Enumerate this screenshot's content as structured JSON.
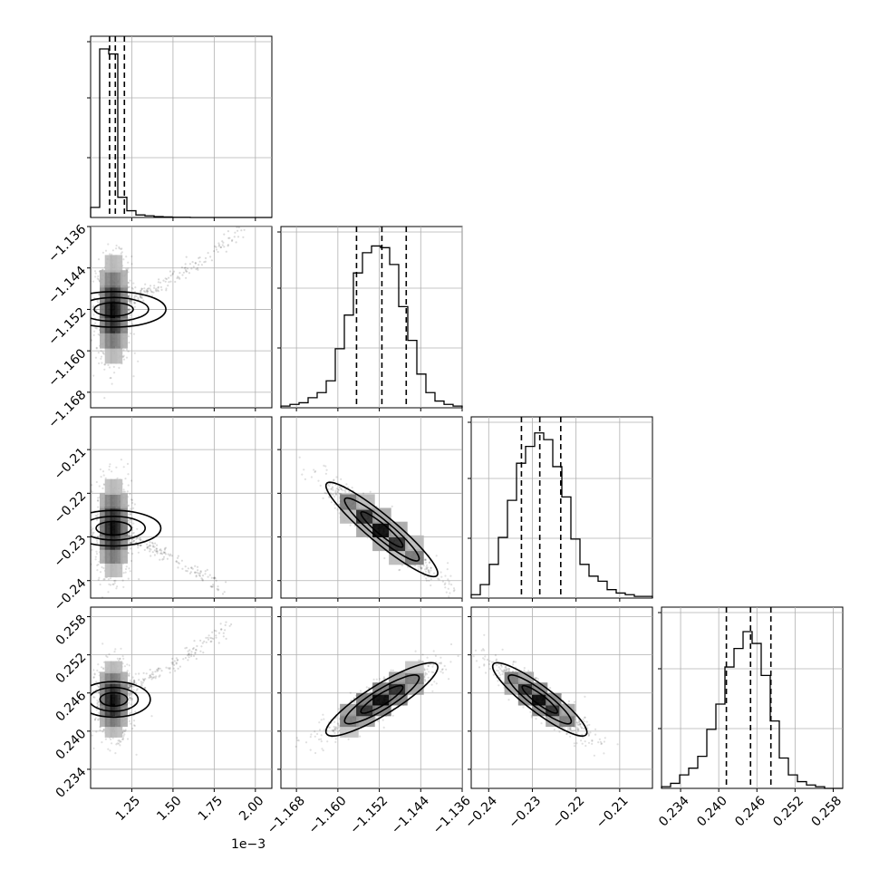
{
  "chart_data": {
    "type": "corner",
    "parameters": [
      {
        "range": [
          1.0,
          2.1
        ],
        "quantiles": [
          1.115,
          1.15,
          1.205
        ],
        "xticks": [
          "1.25",
          "1.50",
          "1.75",
          "2.00"
        ],
        "xtick_values": [
          1.25,
          1.5,
          1.75,
          2.0
        ],
        "offset_text": "1e−3",
        "hist_bins": [
          0.06,
          1.0,
          0.97,
          0.12,
          0.04,
          0.015,
          0.01,
          0.005,
          0.003,
          0.001,
          0.001,
          0.0,
          0.0,
          0.0,
          0.0,
          0.0,
          0.0,
          0.0,
          0.0,
          0.0
        ]
      },
      {
        "range": [
          -1.171,
          -1.136
        ],
        "quantiles": [
          -1.1564,
          -1.1515,
          -1.1468
        ],
        "ticks": [
          "−1.136",
          "−1.144",
          "−1.152",
          "−1.160",
          "−1.168"
        ],
        "tick_values": [
          -1.136,
          -1.144,
          -1.152,
          -1.16,
          -1.168
        ],
        "hist_bins": [
          0.01,
          0.02,
          0.03,
          0.06,
          0.09,
          0.16,
          0.35,
          0.55,
          0.8,
          0.92,
          0.96,
          0.95,
          0.85,
          0.6,
          0.4,
          0.2,
          0.09,
          0.04,
          0.02,
          0.01
        ]
      },
      {
        "range": [
          -0.244,
          -0.2025
        ],
        "quantiles": [
          -0.2325,
          -0.2283,
          -0.2235
        ],
        "xticks": [
          "−0.24",
          "−0.23",
          "−0.22",
          "−0.21"
        ],
        "xtick_values": [
          -0.24,
          -0.23,
          -0.22,
          -0.21
        ],
        "yticks": [
          "−0.21",
          "−0.22",
          "−0.23",
          "−0.24"
        ],
        "ytick_values": [
          -0.21,
          -0.22,
          -0.23,
          -0.24
        ],
        "hist_bins": [
          0.02,
          0.08,
          0.2,
          0.36,
          0.58,
          0.8,
          0.9,
          0.98,
          0.94,
          0.78,
          0.6,
          0.35,
          0.2,
          0.13,
          0.1,
          0.05,
          0.03,
          0.02,
          0.01,
          0.01
        ]
      },
      {
        "range": [
          0.231,
          0.2595
        ],
        "quantiles": [
          0.2412,
          0.245,
          0.2482
        ],
        "ticks": [
          "0.234",
          "0.240",
          "0.246",
          "0.252",
          "0.258"
        ],
        "tick_values": [
          0.234,
          0.24,
          0.246,
          0.252,
          0.258
        ],
        "hist_bins": [
          0.01,
          0.03,
          0.08,
          0.12,
          0.19,
          0.35,
          0.5,
          0.72,
          0.83,
          0.93,
          0.86,
          0.67,
          0.4,
          0.18,
          0.08,
          0.04,
          0.02,
          0.01,
          0.0,
          0.0
        ]
      }
    ],
    "pairs": [
      {
        "x": 0,
        "y": 1,
        "center": [
          1.14,
          -1.152
        ],
        "sd": [
          0.045,
          0.0042
        ],
        "rho": 0.0,
        "tail": {
          "dir": [
            0.6,
            1.0
          ],
          "len": [
            0.75,
            0.014
          ]
        }
      },
      {
        "x": 0,
        "y": 2,
        "center": [
          1.14,
          -0.228
        ],
        "sd": [
          0.045,
          0.0045
        ],
        "rho": 0.0,
        "tail": {
          "dir": [
            0.6,
            -1.0
          ],
          "len": [
            0.6,
            0.012
          ]
        }
      },
      {
        "x": 1,
        "y": 2,
        "center": [
          -1.1515,
          -0.2283
        ],
        "sd": [
          0.0045,
          0.0045
        ],
        "rho": -0.93,
        "tail": null
      },
      {
        "x": 0,
        "y": 3,
        "center": [
          1.14,
          0.245
        ],
        "sd": [
          0.045,
          0.0024
        ],
        "rho": 0.0,
        "tail": {
          "dir": [
            0.6,
            1.0
          ],
          "len": [
            0.65,
            0.011
          ]
        }
      },
      {
        "x": 1,
        "y": 3,
        "center": [
          -1.1515,
          0.245
        ],
        "sd": [
          0.0045,
          0.0024
        ],
        "rho": 0.88,
        "tail": null
      },
      {
        "x": 2,
        "y": 3,
        "center": [
          -0.2283,
          0.245
        ],
        "sd": [
          0.0045,
          0.0024
        ],
        "rho": -0.9,
        "tail": null
      }
    ]
  }
}
